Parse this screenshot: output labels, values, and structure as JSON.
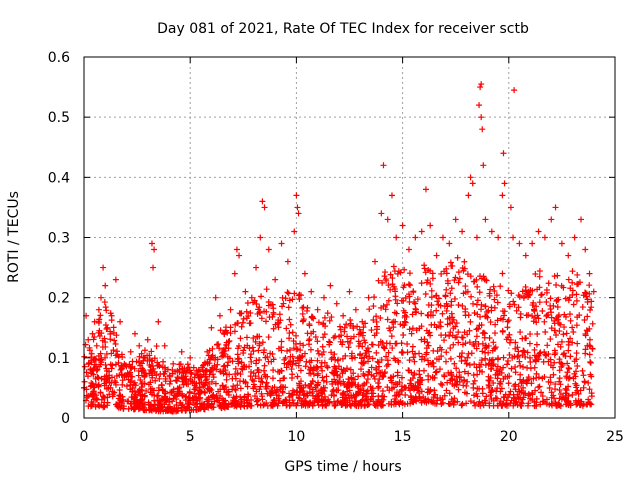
{
  "chart_data": {
    "type": "scatter",
    "title": "Day 081 of 2021, Rate Of TEC Index for receiver sctb",
    "xlabel": "GPS time / hours",
    "ylabel": "ROTI / TECUs",
    "xlim": [
      0,
      25
    ],
    "ylim": [
      0,
      0.6
    ],
    "xticks": [
      0,
      5,
      10,
      15,
      20,
      25
    ],
    "xtick_labels": [
      "0",
      "5",
      "10",
      "15",
      "20",
      "25"
    ],
    "yticks": [
      0,
      0.1,
      0.2,
      0.3,
      0.4,
      0.5,
      0.6
    ],
    "ytick_labels": [
      "0",
      "0.1",
      "0.2",
      "0.3",
      "0.4",
      "0.5",
      "0.6"
    ],
    "grid": true,
    "marker": "+",
    "color": "#ff0000",
    "series": [
      {
        "values": [
          [
            0.0,
            0.05
          ],
          [
            0.1,
            0.17
          ],
          [
            0.2,
            0.13
          ],
          [
            0.3,
            0.08
          ],
          [
            0.4,
            0.14
          ],
          [
            0.5,
            0.16
          ],
          [
            0.6,
            0.12
          ],
          [
            0.7,
            0.18
          ],
          [
            0.8,
            0.2
          ],
          [
            0.9,
            0.25
          ],
          [
            1.0,
            0.22
          ],
          [
            1.1,
            0.15
          ],
          [
            1.3,
            0.17
          ],
          [
            1.5,
            0.23
          ],
          [
            1.7,
            0.16
          ],
          [
            1.9,
            0.09
          ],
          [
            2.2,
            0.11
          ],
          [
            2.4,
            0.14
          ],
          [
            2.6,
            0.12
          ],
          [
            2.8,
            0.1
          ],
          [
            3.0,
            0.13
          ],
          [
            3.2,
            0.29
          ],
          [
            3.3,
            0.28
          ],
          [
            3.25,
            0.25
          ],
          [
            3.5,
            0.16
          ],
          [
            3.8,
            0.12
          ],
          [
            4.2,
            0.09
          ],
          [
            4.6,
            0.11
          ],
          [
            5.0,
            0.1
          ],
          [
            5.4,
            0.08
          ],
          [
            5.8,
            0.11
          ],
          [
            6.0,
            0.15
          ],
          [
            6.2,
            0.2
          ],
          [
            6.4,
            0.17
          ],
          [
            6.6,
            0.14
          ],
          [
            6.9,
            0.18
          ],
          [
            7.1,
            0.24
          ],
          [
            7.2,
            0.28
          ],
          [
            7.3,
            0.27
          ],
          [
            7.6,
            0.21
          ],
          [
            7.9,
            0.2
          ],
          [
            8.1,
            0.25
          ],
          [
            8.3,
            0.3
          ],
          [
            8.4,
            0.36
          ],
          [
            8.5,
            0.35
          ],
          [
            8.7,
            0.28
          ],
          [
            9.0,
            0.23
          ],
          [
            9.3,
            0.29
          ],
          [
            9.6,
            0.26
          ],
          [
            9.9,
            0.31
          ],
          [
            10.0,
            0.37
          ],
          [
            10.05,
            0.35
          ],
          [
            10.1,
            0.34
          ],
          [
            10.4,
            0.24
          ],
          [
            10.7,
            0.21
          ],
          [
            11.0,
            0.18
          ],
          [
            11.3,
            0.2
          ],
          [
            11.6,
            0.22
          ],
          [
            11.9,
            0.19
          ],
          [
            12.2,
            0.17
          ],
          [
            12.5,
            0.21
          ],
          [
            12.8,
            0.18
          ],
          [
            13.1,
            0.16
          ],
          [
            13.4,
            0.2
          ],
          [
            13.7,
            0.26
          ],
          [
            14.0,
            0.34
          ],
          [
            14.1,
            0.42
          ],
          [
            14.3,
            0.33
          ],
          [
            14.5,
            0.37
          ],
          [
            14.7,
            0.3
          ],
          [
            15.0,
            0.32
          ],
          [
            15.3,
            0.28
          ],
          [
            15.6,
            0.3
          ],
          [
            15.9,
            0.31
          ],
          [
            16.1,
            0.38
          ],
          [
            16.3,
            0.32
          ],
          [
            16.6,
            0.27
          ],
          [
            16.9,
            0.3
          ],
          [
            17.2,
            0.29
          ],
          [
            17.5,
            0.33
          ],
          [
            17.8,
            0.31
          ],
          [
            18.1,
            0.37
          ],
          [
            18.2,
            0.4
          ],
          [
            18.3,
            0.39
          ],
          [
            18.5,
            0.3
          ],
          [
            18.6,
            0.52
          ],
          [
            18.65,
            0.55
          ],
          [
            18.7,
            0.555
          ],
          [
            18.7,
            0.5
          ],
          [
            18.75,
            0.48
          ],
          [
            18.8,
            0.42
          ],
          [
            18.9,
            0.33
          ],
          [
            19.2,
            0.31
          ],
          [
            19.5,
            0.3
          ],
          [
            19.7,
            0.37
          ],
          [
            19.75,
            0.44
          ],
          [
            19.8,
            0.39
          ],
          [
            20.1,
            0.35
          ],
          [
            20.2,
            0.3
          ],
          [
            20.25,
            0.545
          ],
          [
            20.5,
            0.29
          ],
          [
            20.8,
            0.27
          ],
          [
            21.1,
            0.29
          ],
          [
            21.4,
            0.31
          ],
          [
            21.7,
            0.3
          ],
          [
            22.0,
            0.33
          ],
          [
            22.2,
            0.35
          ],
          [
            22.5,
            0.29
          ],
          [
            22.8,
            0.27
          ],
          [
            23.1,
            0.3
          ],
          [
            23.4,
            0.33
          ],
          [
            23.6,
            0.28
          ],
          [
            23.8,
            0.24
          ],
          [
            24.0,
            0.21
          ]
        ]
      }
    ],
    "upper_envelope": [
      [
        0.0,
        0.13
      ],
      [
        0.5,
        0.14
      ],
      [
        1.0,
        0.2
      ],
      [
        1.5,
        0.15
      ],
      [
        2.0,
        0.09
      ],
      [
        2.5,
        0.1
      ],
      [
        3.0,
        0.12
      ],
      [
        3.5,
        0.12
      ],
      [
        4.0,
        0.08
      ],
      [
        4.5,
        0.09
      ],
      [
        5.0,
        0.09
      ],
      [
        5.5,
        0.08
      ],
      [
        6.0,
        0.12
      ],
      [
        6.5,
        0.15
      ],
      [
        7.0,
        0.16
      ],
      [
        7.5,
        0.19
      ],
      [
        8.0,
        0.2
      ],
      [
        8.5,
        0.22
      ],
      [
        9.0,
        0.2
      ],
      [
        9.5,
        0.24
      ],
      [
        10.0,
        0.22
      ],
      [
        10.5,
        0.19
      ],
      [
        11.0,
        0.16
      ],
      [
        11.5,
        0.18
      ],
      [
        12.0,
        0.15
      ],
      [
        12.5,
        0.17
      ],
      [
        13.0,
        0.15
      ],
      [
        13.5,
        0.2
      ],
      [
        14.0,
        0.24
      ],
      [
        14.5,
        0.26
      ],
      [
        15.0,
        0.25
      ],
      [
        15.5,
        0.24
      ],
      [
        16.0,
        0.26
      ],
      [
        16.5,
        0.24
      ],
      [
        17.0,
        0.25
      ],
      [
        17.5,
        0.27
      ],
      [
        18.0,
        0.26
      ],
      [
        18.5,
        0.25
      ],
      [
        19.0,
        0.24
      ],
      [
        19.5,
        0.25
      ],
      [
        20.0,
        0.23
      ],
      [
        20.5,
        0.22
      ],
      [
        21.0,
        0.24
      ],
      [
        21.5,
        0.26
      ],
      [
        22.0,
        0.25
      ],
      [
        22.5,
        0.23
      ],
      [
        23.0,
        0.25
      ],
      [
        23.5,
        0.24
      ],
      [
        24.0,
        0.22
      ]
    ],
    "lower_envelope": [
      [
        0.0,
        0.02
      ],
      [
        2.0,
        0.015
      ],
      [
        4.0,
        0.01
      ],
      [
        6.0,
        0.015
      ],
      [
        8.0,
        0.02
      ],
      [
        10.0,
        0.02
      ],
      [
        12.0,
        0.02
      ],
      [
        14.0,
        0.02
      ],
      [
        16.0,
        0.025
      ],
      [
        18.0,
        0.02
      ],
      [
        20.0,
        0.02
      ],
      [
        22.0,
        0.02
      ],
      [
        24.0,
        0.02
      ]
    ]
  }
}
